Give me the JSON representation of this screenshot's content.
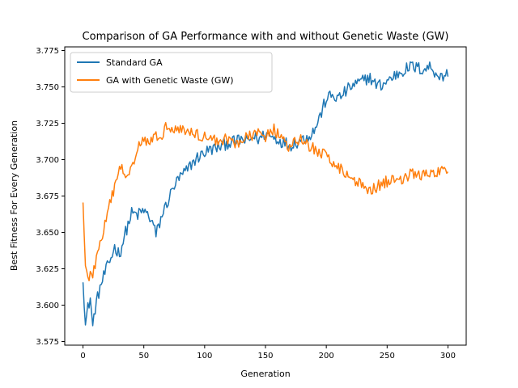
{
  "chart_data": {
    "type": "line",
    "title": "Comparison of GA Performance with and without Genetic Waste (GW)",
    "xlabel": "Generation",
    "ylabel": "Best Fitness For Every Generation",
    "xlim": [
      -15,
      315
    ],
    "ylim": [
      3.5725,
      3.7775
    ],
    "xticks": [
      0,
      50,
      100,
      150,
      200,
      250,
      300
    ],
    "yticks": [
      3.575,
      3.6,
      3.625,
      3.65,
      3.675,
      3.7,
      3.725,
      3.75,
      3.775
    ],
    "xtick_labels": [
      "0",
      "50",
      "100",
      "150",
      "200",
      "250",
      "300"
    ],
    "ytick_labels": [
      "3.575",
      "3.600",
      "3.625",
      "3.650",
      "3.675",
      "3.700",
      "3.725",
      "3.750",
      "3.775"
    ],
    "grid": false,
    "legend_position": "upper-left",
    "x_range": [
      0,
      300
    ],
    "series": [
      {
        "name": "Standard GA",
        "color": "#1f77b4",
        "anchors": [
          [
            0,
            3.62
          ],
          [
            2,
            3.586
          ],
          [
            4,
            3.598
          ],
          [
            6,
            3.605
          ],
          [
            8,
            3.585
          ],
          [
            10,
            3.598
          ],
          [
            14,
            3.612
          ],
          [
            18,
            3.622
          ],
          [
            22,
            3.63
          ],
          [
            26,
            3.64
          ],
          [
            30,
            3.635
          ],
          [
            35,
            3.65
          ],
          [
            40,
            3.663
          ],
          [
            45,
            3.662
          ],
          [
            50,
            3.665
          ],
          [
            55,
            3.66
          ],
          [
            58,
            3.655
          ],
          [
            60,
            3.648
          ],
          [
            65,
            3.662
          ],
          [
            70,
            3.672
          ],
          [
            75,
            3.682
          ],
          [
            80,
            3.688
          ],
          [
            85,
            3.692
          ],
          [
            90,
            3.698
          ],
          [
            95,
            3.702
          ],
          [
            100,
            3.705
          ],
          [
            105,
            3.707
          ],
          [
            110,
            3.708
          ],
          [
            115,
            3.71
          ],
          [
            120,
            3.712
          ],
          [
            125,
            3.712
          ],
          [
            130,
            3.714
          ],
          [
            135,
            3.712
          ],
          [
            140,
            3.716
          ],
          [
            145,
            3.714
          ],
          [
            150,
            3.718
          ],
          [
            155,
            3.716
          ],
          [
            160,
            3.714
          ],
          [
            165,
            3.712
          ],
          [
            170,
            3.71
          ],
          [
            175,
            3.712
          ],
          [
            180,
            3.714
          ],
          [
            185,
            3.716
          ],
          [
            190,
            3.72
          ],
          [
            195,
            3.73
          ],
          [
            200,
            3.742
          ],
          [
            205,
            3.744
          ],
          [
            210,
            3.742
          ],
          [
            215,
            3.746
          ],
          [
            220,
            3.75
          ],
          [
            225,
            3.752
          ],
          [
            230,
            3.754
          ],
          [
            235,
            3.757
          ],
          [
            240,
            3.752
          ],
          [
            245,
            3.751
          ],
          [
            250,
            3.754
          ],
          [
            255,
            3.757
          ],
          [
            260,
            3.76
          ],
          [
            265,
            3.762
          ],
          [
            270,
            3.764
          ],
          [
            275,
            3.763
          ],
          [
            280,
            3.762
          ],
          [
            285,
            3.764
          ],
          [
            290,
            3.76
          ],
          [
            295,
            3.756
          ],
          [
            299,
            3.76
          ]
        ],
        "noise": 0.0045
      },
      {
        "name": "GA with Genetic Waste (GW)",
        "color": "#ff7f0e",
        "anchors": [
          [
            0,
            3.674
          ],
          [
            2,
            3.625
          ],
          [
            4,
            3.618
          ],
          [
            8,
            3.622
          ],
          [
            12,
            3.635
          ],
          [
            16,
            3.648
          ],
          [
            20,
            3.662
          ],
          [
            25,
            3.678
          ],
          [
            30,
            3.695
          ],
          [
            35,
            3.69
          ],
          [
            40,
            3.695
          ],
          [
            45,
            3.71
          ],
          [
            50,
            3.714
          ],
          [
            55,
            3.714
          ],
          [
            60,
            3.715
          ],
          [
            65,
            3.718
          ],
          [
            70,
            3.724
          ],
          [
            75,
            3.722
          ],
          [
            80,
            3.721
          ],
          [
            85,
            3.72
          ],
          [
            90,
            3.718
          ],
          [
            95,
            3.717
          ],
          [
            100,
            3.716
          ],
          [
            105,
            3.714
          ],
          [
            110,
            3.713
          ],
          [
            115,
            3.714
          ],
          [
            120,
            3.714
          ],
          [
            125,
            3.712
          ],
          [
            130,
            3.712
          ],
          [
            135,
            3.715
          ],
          [
            140,
            3.717
          ],
          [
            145,
            3.718
          ],
          [
            150,
            3.716
          ],
          [
            155,
            3.722
          ],
          [
            160,
            3.718
          ],
          [
            165,
            3.712
          ],
          [
            170,
            3.708
          ],
          [
            175,
            3.712
          ],
          [
            180,
            3.714
          ],
          [
            185,
            3.71
          ],
          [
            190,
            3.707
          ],
          [
            195,
            3.705
          ],
          [
            200,
            3.702
          ],
          [
            205,
            3.699
          ],
          [
            210,
            3.696
          ],
          [
            215,
            3.69
          ],
          [
            220,
            3.688
          ],
          [
            225,
            3.685
          ],
          [
            230,
            3.682
          ],
          [
            235,
            3.68
          ],
          [
            240,
            3.681
          ],
          [
            245,
            3.683
          ],
          [
            250,
            3.685
          ],
          [
            255,
            3.686
          ],
          [
            260,
            3.687
          ],
          [
            265,
            3.688
          ],
          [
            270,
            3.69
          ],
          [
            275,
            3.69
          ],
          [
            280,
            3.689
          ],
          [
            285,
            3.69
          ],
          [
            290,
            3.69
          ],
          [
            295,
            3.692
          ],
          [
            299,
            3.693
          ]
        ],
        "noise": 0.0042
      }
    ]
  }
}
